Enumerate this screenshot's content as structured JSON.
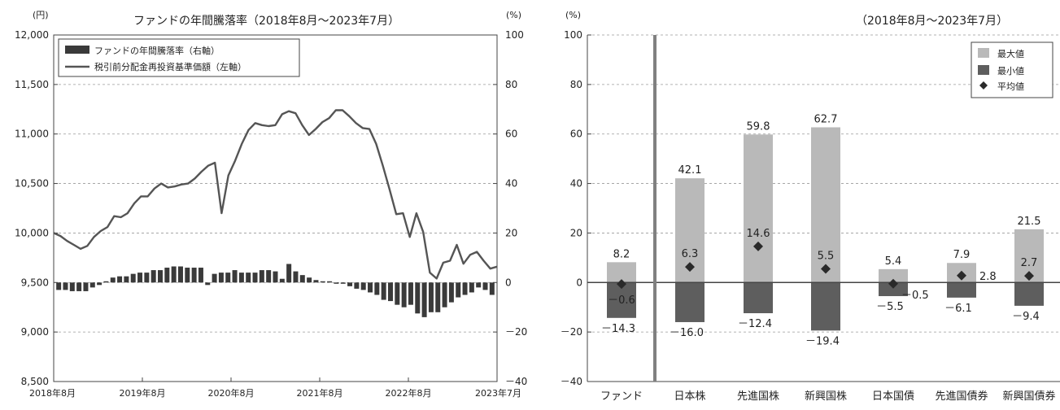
{
  "left_chart": {
    "title": "ファンドの年間騰落率（2018年8月～2023年7月）",
    "left_unit": "(円)",
    "right_unit": "(%)",
    "legend": {
      "bar_label": "ファンドの年間騰落率（右軸）",
      "line_label": "税引前分配金再投資基準価額（左軸）"
    }
  },
  "right_chart": {
    "title": "（2018年8月～2023年7月）",
    "unit": "(%)",
    "legend": {
      "max_label": "最大値",
      "min_label": "最小値",
      "avg_label": "平均値"
    }
  },
  "colors": {
    "bar": "#3a3a3a",
    "line": "#555555",
    "max_bar": "#b9b9b9",
    "min_bar": "#5e5e5e",
    "marker": "#2a2a2a",
    "grid": "#999999",
    "divider": "#808080"
  },
  "chart_data": [
    {
      "type": "line",
      "title": "ファンドの年間騰落率（2018年8月～2023年7月）",
      "x_ticks": [
        "2018年8月",
        "2019年8月",
        "2020年8月",
        "2021年8月",
        "2022年8月",
        "2023年7月"
      ],
      "y_left": {
        "unit": "(円)",
        "lim": [
          8500,
          12000
        ],
        "ticks": [
          8500,
          9000,
          9500,
          10000,
          10500,
          11000,
          11500,
          12000
        ],
        "tick_labels": [
          "8,500",
          "9,000",
          "9,500",
          "10,000",
          "10,500",
          "11,000",
          "11,500",
          "12,000"
        ]
      },
      "y_right": {
        "unit": "(%)",
        "lim": [
          -40,
          100
        ],
        "ticks": [
          -40,
          -20,
          0,
          20,
          40,
          60,
          80,
          100
        ],
        "tick_labels": [
          "－40",
          "－20",
          "0",
          "20",
          "40",
          "60",
          "80",
          "100"
        ]
      },
      "grid": true,
      "legend_position": "top-left",
      "series": [
        {
          "name": "税引前分配金再投資基準価額（左軸）",
          "kind": "line",
          "axis": "left",
          "values": [
            10000,
            9970,
            9920,
            9880,
            9840,
            9870,
            9960,
            10020,
            10060,
            10170,
            10160,
            10200,
            10300,
            10370,
            10370,
            10450,
            10500,
            10460,
            10470,
            10490,
            10500,
            10550,
            10620,
            10680,
            10710,
            10200,
            10580,
            10730,
            10900,
            11040,
            11110,
            11090,
            11080,
            11090,
            11200,
            11230,
            11210,
            11090,
            10990,
            11050,
            11120,
            11160,
            11240,
            11240,
            11180,
            11110,
            11060,
            11050,
            10900,
            10680,
            10440,
            10190,
            10200,
            9960,
            10200,
            10010,
            9600,
            9540,
            9700,
            9720,
            9880,
            9690,
            9780,
            9810,
            9720,
            9640,
            9660
          ]
        },
        {
          "name": "ファンドの年間騰落率（右軸）",
          "kind": "bar",
          "axis": "right",
          "values": [
            -3,
            -3,
            -3.5,
            -3.5,
            -3.5,
            -2,
            -1,
            0.5,
            2,
            2.5,
            2.5,
            3.5,
            4,
            4,
            5,
            5,
            6,
            6.5,
            6.5,
            6,
            6,
            6,
            -1,
            3.5,
            4,
            4,
            5,
            4,
            4,
            4,
            5,
            5,
            4.5,
            1.5,
            7.5,
            4.5,
            3,
            2,
            1,
            0.5,
            0.5,
            -0.5,
            -0.5,
            -1.5,
            -2.5,
            -3,
            -4,
            -5,
            -7,
            -7.5,
            -9,
            -10,
            -9,
            -12.5,
            -14,
            -12,
            -12,
            -10,
            -8,
            -6,
            -5,
            -4,
            -2,
            -3,
            -5
          ]
        }
      ]
    },
    {
      "type": "bar",
      "title": "（2018年8月～2023年7月）",
      "y_unit": "(%)",
      "ylim": [
        -40,
        100
      ],
      "y_ticks": [
        -40,
        -20,
        0,
        20,
        40,
        60,
        80,
        100
      ],
      "y_tick_labels": [
        "－40",
        "－20",
        "0",
        "20",
        "40",
        "60",
        "80",
        "100"
      ],
      "grid": true,
      "legend_position": "top-right",
      "categories": [
        "ファンド",
        "日本株",
        "先進国株",
        "新興国株",
        "日本国債",
        "先進国債券",
        "新興国債券"
      ],
      "series": [
        {
          "name": "最大値",
          "values": [
            8.2,
            42.1,
            59.8,
            62.7,
            5.4,
            7.9,
            21.5
          ],
          "labels": [
            "8.2",
            "42.1",
            "59.8",
            "62.7",
            "5.4",
            "7.9",
            "21.5"
          ]
        },
        {
          "name": "最小値",
          "values": [
            -14.3,
            -16.0,
            -12.4,
            -19.4,
            -5.5,
            -6.1,
            -9.4
          ],
          "labels": [
            "－14.3",
            "－16.0",
            "－12.4",
            "－19.4",
            "－5.5",
            "－6.1",
            "－9.4"
          ]
        },
        {
          "name": "平均値",
          "values": [
            -0.6,
            6.3,
            14.6,
            5.5,
            -0.5,
            2.8,
            2.7
          ],
          "labels": [
            "－0.6",
            "6.3",
            "14.6",
            "5.5",
            "－0.5",
            "2.8",
            "2.7"
          ]
        }
      ]
    }
  ]
}
